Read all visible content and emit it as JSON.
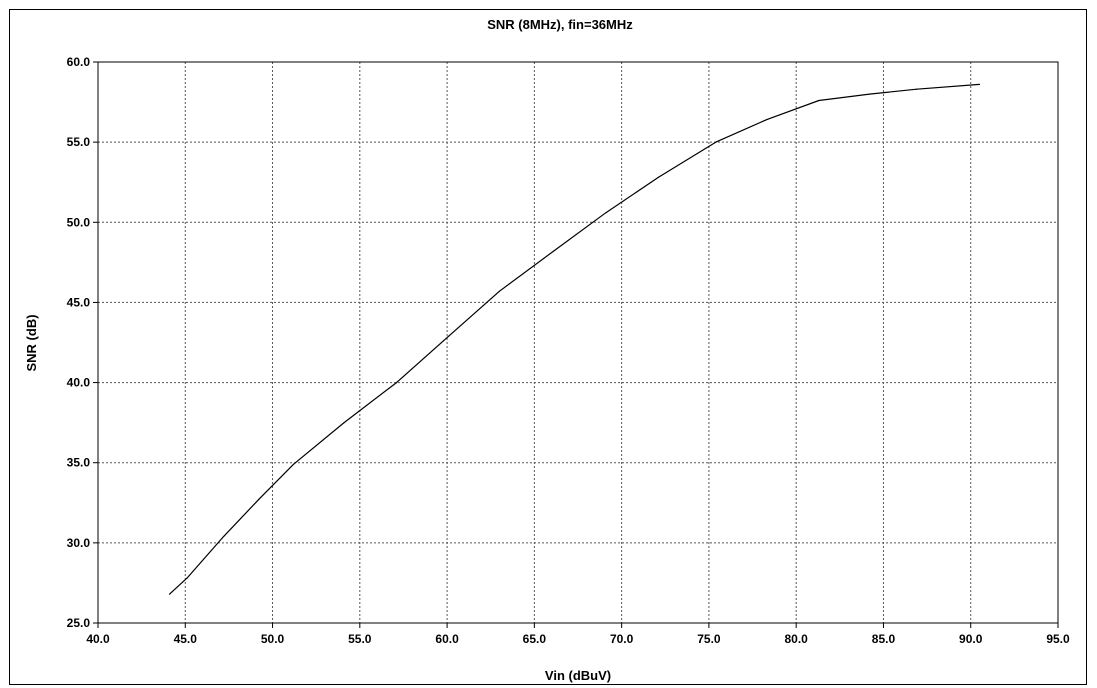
{
  "chart_data": {
    "type": "line",
    "title": "SNR (8MHz), fin=36MHz",
    "xlabel": "Vin (dBuV)",
    "ylabel": "SNR (dB)",
    "xlim": [
      40,
      95
    ],
    "ylim": [
      25,
      60
    ],
    "x_ticks": [
      "40.0",
      "45.0",
      "50.0",
      "55.0",
      "60.0",
      "65.0",
      "70.0",
      "75.0",
      "80.0",
      "85.0",
      "90.0",
      "95.0"
    ],
    "y_ticks": [
      "25.0",
      "30.0",
      "35.0",
      "40.0",
      "45.0",
      "50.0",
      "55.0",
      "60.0"
    ],
    "grid": true,
    "series": [
      {
        "x": [
          44.1,
          45.1,
          47.2,
          49.2,
          51.2,
          54.1,
          57.1,
          60.1,
          63.0,
          66.1,
          69.1,
          72.1,
          75.4,
          78.3,
          81.3,
          84.2,
          86.9,
          90.5
        ],
        "y": [
          26.8,
          27.8,
          30.4,
          32.7,
          34.9,
          37.5,
          40.0,
          42.9,
          45.7,
          48.2,
          50.6,
          52.8,
          55.0,
          56.4,
          57.6,
          58.0,
          58.3,
          58.6
        ],
        "color": "#000000"
      }
    ]
  }
}
